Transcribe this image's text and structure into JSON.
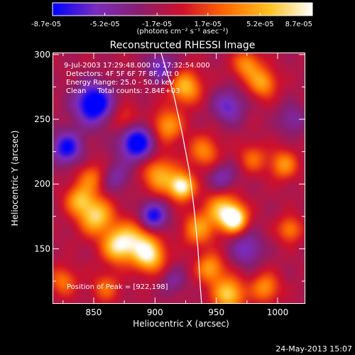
{
  "colorbar": {
    "tick_labels": [
      "-8.7e-05",
      "-5.2e-05",
      "-1.7e-05",
      "1.7e-05",
      "5.2e-05",
      "8.7e-05"
    ],
    "tick_values": [
      -8.7e-05,
      -5.2e-05,
      -1.7e-05,
      1.7e-05,
      5.2e-05,
      8.7e-05
    ],
    "range": [
      -8.7e-05,
      8.7e-05
    ],
    "units_label": "(photons cm⁻² s⁻¹ asec⁻²)",
    "colormap": "rhessi-purple-red-yellow-white",
    "colors": [
      "#0000ff",
      "#7a2cbe",
      "#8a1e6e",
      "#d0102a",
      "#ff6a00",
      "#ffc020",
      "#ffffff"
    ]
  },
  "chart_data": {
    "type": "heatmap",
    "title": "Reconstructed RHESSI Image",
    "xlabel": "Heliocentric X (arcsec)",
    "ylabel": "Heliocentric Y (arcsec)",
    "xlim": [
      817,
      1022
    ],
    "ylim": [
      108,
      301
    ],
    "xticks": [
      850,
      900,
      950,
      1000
    ],
    "yticks": [
      150,
      200,
      250,
      300
    ],
    "xtick_labels": [
      "850",
      "900",
      "950",
      "1000"
    ],
    "ytick_labels": [
      "150",
      "200",
      "250",
      "300"
    ],
    "annotations": [
      "9-Jul-2003 17:29:48.000 to 17:32:54.000",
      "Detectors: 4F 5F 6F 7F 8F, Att 0",
      "Energy Range: 25.0 - 50.0 keV",
      "Clean     Total counts: 2.84E+03"
    ],
    "peak_label": "Position of Peak = [922,198]",
    "peak": [
      922,
      198
    ],
    "limb_curve": [
      [
        905,
        301
      ],
      [
        915,
        270
      ],
      [
        922,
        240
      ],
      [
        928,
        210
      ],
      [
        932,
        180
      ],
      [
        935,
        150
      ],
      [
        937,
        120
      ],
      [
        938,
        108
      ]
    ],
    "sources": [
      [
        922,
        198,
        1.0,
        7
      ],
      [
        904,
        207,
        0.65,
        10
      ],
      [
        895,
        145,
        0.9,
        9
      ],
      [
        885,
        160,
        0.55,
        10
      ],
      [
        870,
        152,
        0.85,
        9
      ],
      [
        852,
        175,
        0.8,
        10
      ],
      [
        838,
        188,
        0.6,
        8
      ],
      [
        955,
        180,
        0.7,
        10
      ],
      [
        965,
        173,
        0.95,
        7
      ],
      [
        935,
        165,
        0.55,
        9
      ],
      [
        925,
        275,
        0.7,
        9
      ],
      [
        910,
        245,
        0.6,
        9
      ],
      [
        988,
        278,
        0.6,
        8
      ],
      [
        975,
        292,
        0.55,
        8
      ],
      [
        1005,
        215,
        0.55,
        8
      ],
      [
        1010,
        165,
        0.5,
        7
      ],
      [
        960,
        115,
        0.8,
        9
      ],
      [
        945,
        135,
        0.6,
        8
      ],
      [
        990,
        120,
        0.55,
        8
      ],
      [
        825,
        125,
        0.45,
        8
      ],
      [
        860,
        120,
        0.4,
        8
      ],
      [
        848,
        205,
        0.45,
        8
      ],
      [
        940,
        225,
        0.5,
        9
      ],
      [
        980,
        220,
        0.4,
        8
      ],
      [
        875,
        250,
        0.35,
        8
      ],
      [
        850,
        262,
        -0.9,
        11
      ],
      [
        885,
        232,
        -0.85,
        10
      ],
      [
        898,
        175,
        -0.75,
        8
      ],
      [
        828,
        228,
        -0.7,
        9
      ],
      [
        905,
        290,
        -0.5,
        8
      ],
      [
        960,
        260,
        -0.5,
        9
      ],
      [
        975,
        150,
        -0.45,
        9
      ],
      [
        955,
        205,
        -0.4,
        8
      ],
      [
        1012,
        250,
        -0.35,
        8
      ],
      [
        868,
        205,
        -0.35,
        8
      ],
      [
        915,
        125,
        -0.3,
        7
      ]
    ]
  },
  "timestamp": "24-May-2013 15:07"
}
